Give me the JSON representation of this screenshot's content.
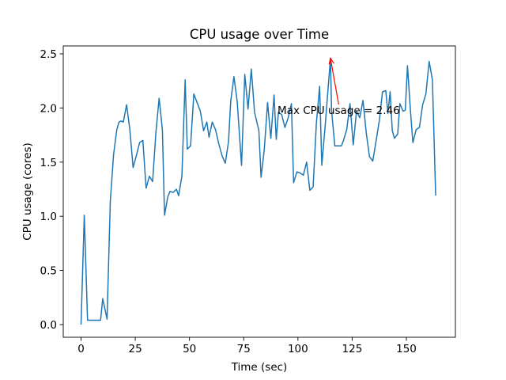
{
  "chart_data": {
    "type": "line",
    "title": "CPU usage over Time",
    "xlabel": "Time (sec)",
    "ylabel": "CPU usage (cores)",
    "xlim": [
      -8.2,
      172.6
    ],
    "ylim": [
      -0.117,
      2.573
    ],
    "xticks": [
      0,
      25,
      50,
      75,
      100,
      125,
      150
    ],
    "yticks": [
      {
        "value": 0,
        "label": "0.0"
      },
      0.5,
      {
        "value": 1,
        "label": "1.0"
      },
      1.5,
      {
        "value": 2,
        "label": "2.0"
      },
      2.5
    ],
    "x": [
      0,
      1.5,
      3,
      9,
      10,
      12,
      13.5,
      15,
      16.5,
      17.5,
      18.5,
      19.5,
      21,
      22.5,
      24,
      25.5,
      27,
      28.5,
      30,
      31.5,
      33,
      34.5,
      36,
      37.5,
      38.5,
      40,
      41,
      42.5,
      44,
      45,
      46.5,
      48,
      49,
      50.5,
      52,
      53.5,
      55,
      56.5,
      58,
      59,
      60.5,
      62,
      63.5,
      65,
      66.5,
      68,
      69,
      70.5,
      72,
      74,
      75.5,
      77,
      78.5,
      80,
      82,
      83,
      84.5,
      86,
      87.5,
      89,
      90,
      91,
      92.5,
      94,
      95.5,
      97,
      98,
      99.5,
      101,
      102.5,
      104,
      105.5,
      107,
      108.5,
      110,
      111,
      112.5,
      115,
      115.5,
      117,
      118.5,
      120,
      121,
      122.5,
      124,
      125.5,
      127,
      128.5,
      130,
      131.5,
      133,
      134.5,
      136,
      137.5,
      139,
      140.5,
      141.5,
      142.5,
      143.5,
      144.5,
      146,
      147,
      148.5,
      149.5,
      150.5,
      152,
      153,
      154.5,
      156,
      157.5,
      159,
      160.5,
      162,
      163.5
    ],
    "series": [
      {
        "name": "CPU usage",
        "color": "#1f77b4",
        "values": [
          0,
          1.01,
          0.04,
          0.04,
          0.24,
          0.05,
          1.14,
          1.57,
          1.8,
          1.87,
          1.88,
          1.87,
          2.03,
          1.8,
          1.45,
          1.56,
          1.68,
          1.7,
          1.26,
          1.37,
          1.32,
          1.77,
          2.09,
          1.8,
          1.01,
          1.18,
          1.23,
          1.22,
          1.25,
          1.19,
          1.37,
          2.26,
          1.62,
          1.65,
          2.13,
          2.05,
          1.97,
          1.79,
          1.87,
          1.73,
          1.87,
          1.8,
          1.67,
          1.56,
          1.49,
          1.69,
          2.06,
          2.29,
          2.06,
          1.47,
          2.31,
          1.99,
          2.36,
          1.96,
          1.79,
          1.36,
          1.62,
          2.05,
          1.72,
          2.12,
          1.71,
          1.96,
          1.94,
          1.82,
          1.91,
          2.04,
          1.31,
          1.41,
          1.4,
          1.38,
          1.5,
          1.24,
          1.27,
          1.86,
          2.2,
          1.47,
          1.82,
          2.46,
          1.98,
          1.65,
          1.65,
          1.65,
          1.7,
          1.8,
          2.04,
          1.66,
          1.97,
          1.91,
          2.07,
          1.77,
          1.55,
          1.51,
          1.69,
          1.88,
          2.15,
          2.16,
          1.95,
          2.15,
          1.79,
          1.72,
          1.76,
          2.04,
          1.97,
          1.98,
          2.39,
          1.94,
          1.68,
          1.8,
          1.82,
          2.03,
          2.13,
          2.43,
          2.26,
          1.19
        ]
      }
    ],
    "annotation": {
      "text": "Max CPU usage = 2.46",
      "xy": [
        115,
        2.46
      ],
      "xytext": [
        90.6,
        1.98
      ],
      "color": "red"
    }
  }
}
